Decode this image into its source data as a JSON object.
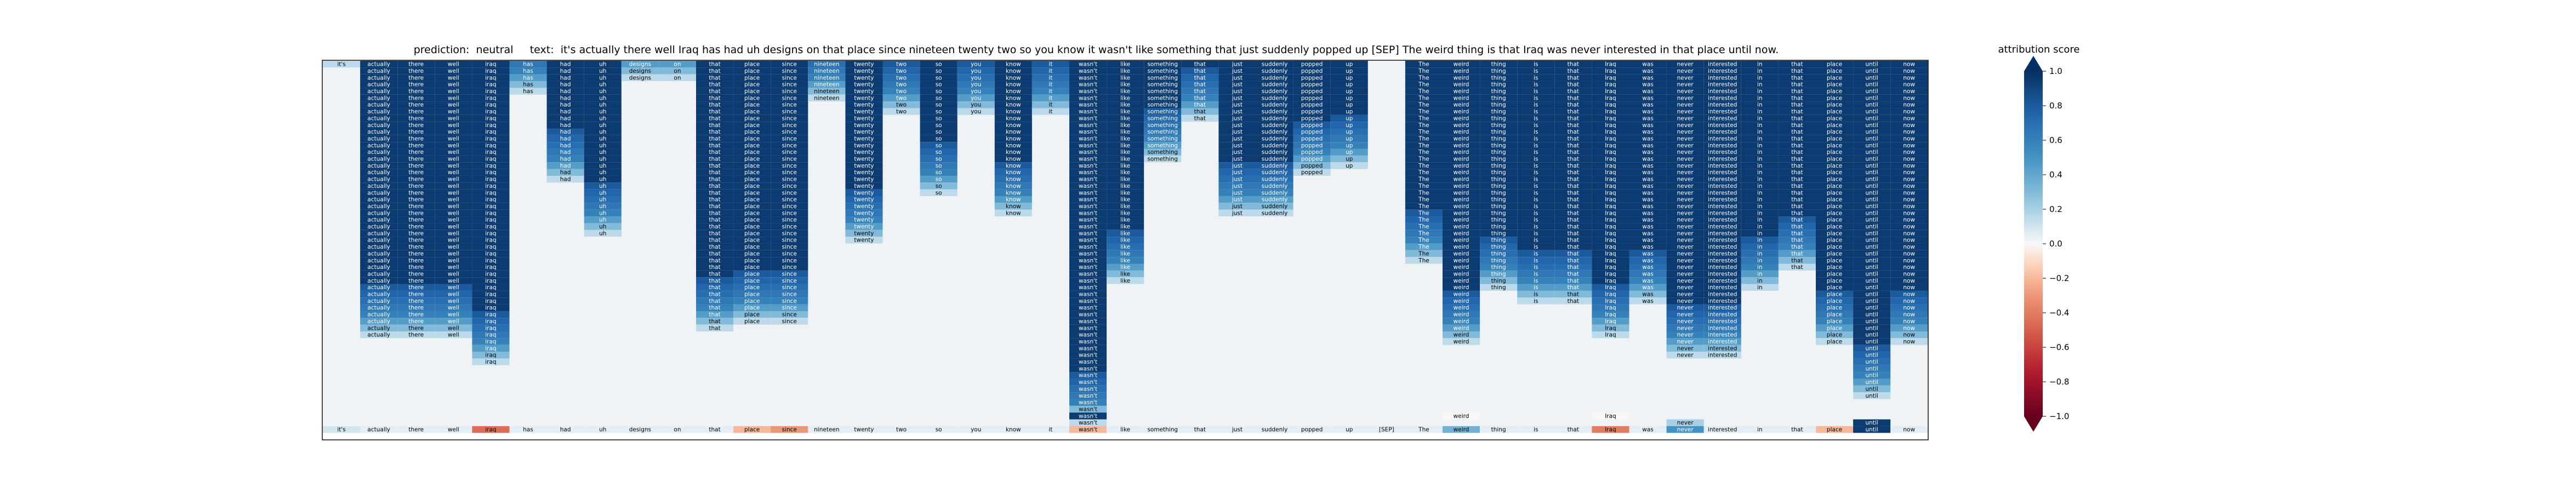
{
  "chart_data": {
    "type": "heatmap",
    "title_prefix": "prediction:",
    "prediction": "neutral",
    "text_prefix": "text:",
    "text": "it's actually there well Iraq has had uh designs on that place since nineteen twenty two so you know it wasn't like something that just suddenly popped up [SEP] The weird thing is that Iraq was never interested in that place until now.",
    "tokens": [
      "it's",
      "actually",
      "there",
      "well",
      "iraq",
      "has",
      "had",
      "uh",
      "designs",
      "on",
      "that",
      "place",
      "since",
      "nineteen",
      "twenty",
      "two",
      "so",
      "you",
      "know",
      "it",
      "wasn't",
      "like",
      "something",
      "that",
      "just",
      "suddenly",
      "popped",
      "up",
      "[SEP]",
      "The",
      "weird",
      "thing",
      "is",
      "that",
      "Iraq",
      "was",
      "never",
      "interested",
      "in",
      "that",
      "place",
      "until",
      "now"
    ],
    "bottom_row_scores": [
      0.1,
      0.05,
      0.05,
      0.05,
      -0.45,
      0.05,
      0.05,
      0.05,
      0.05,
      0.05,
      0.05,
      -0.2,
      -0.3,
      0.05,
      0.05,
      0.05,
      0.05,
      0.05,
      0.05,
      0.05,
      -0.2,
      0.05,
      0.05,
      0.05,
      0.05,
      0.05,
      0.05,
      0.05,
      0.05,
      0.05,
      0.35,
      0.05,
      0.05,
      0.05,
      -0.4,
      0.05,
      0.5,
      0.05,
      0.05,
      0.05,
      -0.2,
      0.95,
      0.05
    ],
    "column_heights": [
      1,
      41,
      41,
      41,
      45,
      5,
      18,
      26,
      3,
      3,
      40,
      39,
      39,
      6,
      27,
      8,
      20,
      8,
      23,
      8,
      54,
      33,
      15,
      9,
      23,
      23,
      17,
      16,
      0,
      30,
      42,
      34,
      36,
      36,
      41,
      36,
      44,
      44,
      34,
      31,
      42,
      50,
      42
    ],
    "extra_cells": [
      {
        "token_index": 20,
        "row": 51,
        "score": 0.3
      },
      {
        "token_index": 20,
        "row": 52,
        "score": 0.95
      },
      {
        "token_index": 30,
        "row": 52,
        "score": 0.0
      },
      {
        "token_index": 34,
        "row": 52,
        "score": 0.0
      },
      {
        "token_index": 36,
        "row": 53,
        "score": 0.2
      },
      {
        "token_index": 41,
        "row": 53,
        "score": 0.95
      }
    ],
    "colorbar": {
      "label": "attribution score",
      "ticks": [
        "1.0",
        "0.8",
        "0.6",
        "0.4",
        "0.2",
        "0.0",
        "−0.2",
        "−0.4",
        "−0.6",
        "−0.8",
        "−1.0"
      ],
      "range": [
        -1,
        1
      ],
      "colormap": "RdBu"
    }
  }
}
